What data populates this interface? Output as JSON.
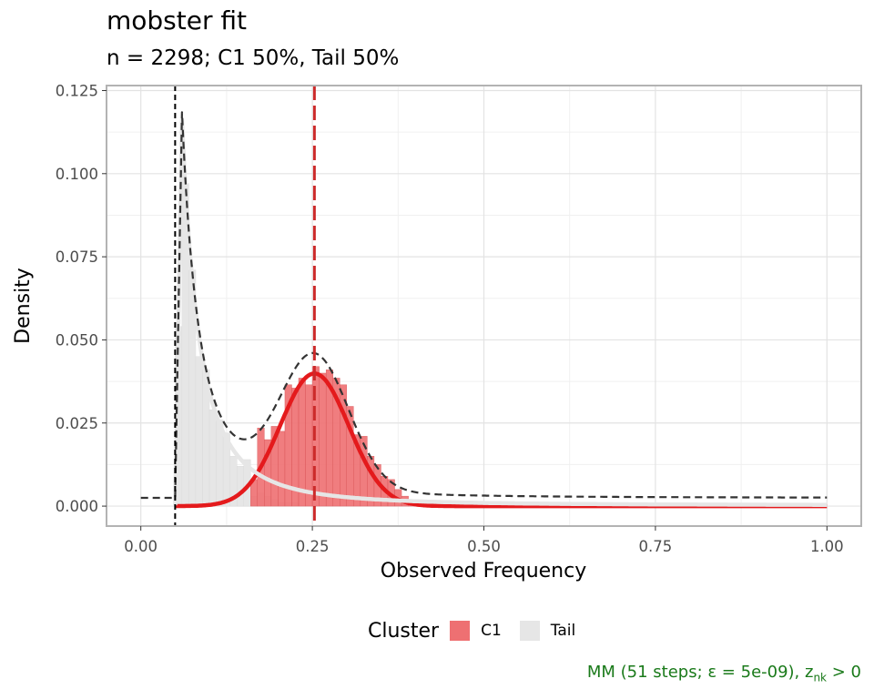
{
  "chart_data": {
    "type": "histogram",
    "title": "mobster fit",
    "subtitle": "n = 2298; C1 50%, Tail 50%",
    "xlabel": "Observed Frequency",
    "ylabel": "Density",
    "xlim": [
      -0.05,
      1.05
    ],
    "ylim": [
      -0.006,
      0.1265
    ],
    "x_ticks": [
      "0.00",
      "0.25",
      "0.50",
      "0.75",
      "1.00"
    ],
    "y_ticks": [
      "0.000",
      "0.025",
      "0.050",
      "0.075",
      "0.100",
      "0.125"
    ],
    "grid": true,
    "legend": {
      "title": "Cluster",
      "position": "bottom",
      "entries": [
        {
          "label": "C1",
          "color": "#ee7072"
        },
        {
          "label": "Tail",
          "color": "#e6e6e6"
        }
      ]
    },
    "bin_width": 0.01,
    "bars": {
      "Tail": [
        [
          0.05,
          0.054
        ],
        [
          0.06,
          0.097
        ],
        [
          0.07,
          0.071
        ],
        [
          0.08,
          0.045
        ],
        [
          0.09,
          0.041
        ],
        [
          0.1,
          0.029
        ],
        [
          0.11,
          0.026
        ],
        [
          0.12,
          0.022
        ],
        [
          0.13,
          0.015
        ],
        [
          0.14,
          0.012
        ],
        [
          0.15,
          0.014
        ],
        [
          0.16,
          0.003
        ],
        [
          0.17,
          0.004
        ],
        [
          0.18,
          0.003
        ],
        [
          0.19,
          0.002
        ],
        [
          0.2,
          0.001
        ],
        [
          0.21,
          0.001
        ],
        [
          0.22,
          0.001
        ]
      ],
      "C1": [
        [
          0.16,
          0.008
        ],
        [
          0.17,
          0.0235
        ],
        [
          0.18,
          0.02
        ],
        [
          0.19,
          0.024
        ],
        [
          0.2,
          0.0225
        ],
        [
          0.21,
          0.0365
        ],
        [
          0.22,
          0.0355
        ],
        [
          0.23,
          0.0385
        ],
        [
          0.24,
          0.0365
        ],
        [
          0.25,
          0.042
        ],
        [
          0.26,
          0.04
        ],
        [
          0.27,
          0.041
        ],
        [
          0.28,
          0.0385
        ],
        [
          0.29,
          0.0365
        ],
        [
          0.3,
          0.03
        ],
        [
          0.31,
          0.0215
        ],
        [
          0.32,
          0.021
        ],
        [
          0.33,
          0.015
        ],
        [
          0.34,
          0.0125
        ],
        [
          0.35,
          0.009
        ],
        [
          0.36,
          0.008
        ],
        [
          0.37,
          0.005
        ],
        [
          0.38,
          0.003
        ],
        [
          0.39,
          0.002
        ],
        [
          0.4,
          0.001
        ],
        [
          0.41,
          0.001
        ],
        [
          0.42,
          0.0005
        ]
      ]
    },
    "density_curves": {
      "C1": {
        "color": "#e41a1c",
        "mean": 0.253,
        "sd": 0.05,
        "weight": 0.5
      },
      "Tail": {
        "color": "#e6e6e6",
        "shape": 1.0,
        "scale": 0.06,
        "weight": 0.5
      },
      "mixture": {
        "color": "#333333",
        "style": "dashed"
      }
    },
    "vlines": [
      {
        "x": 0.05,
        "color": "#000000",
        "style": "dashed"
      },
      {
        "x": 0.253,
        "color": "#cc2a2a",
        "style": "dashed"
      }
    ]
  },
  "caption": {
    "prefix": "MM (51 steps; ε = 5e-09), z",
    "subscript": "nk",
    "suffix": " > 0"
  }
}
